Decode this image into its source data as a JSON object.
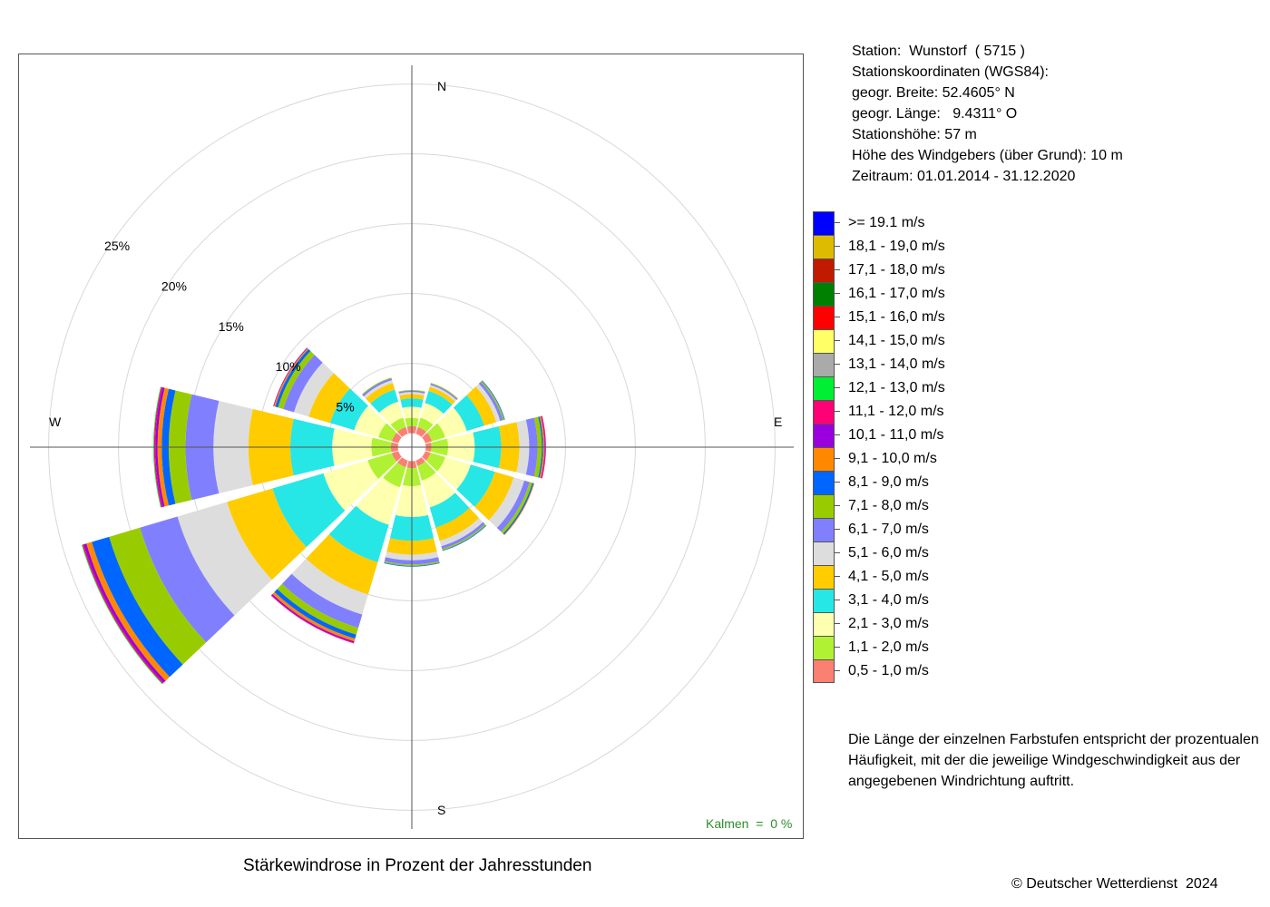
{
  "station": {
    "line1": "Station:  Wunstorf  ( 5715 )",
    "line2": "Stationskoordinaten (WGS84):",
    "line3": "geogr. Breite: 52.4605° N",
    "line4": "geogr. Länge:   9.4311° O",
    "line5": "Stationshöhe: 57 m",
    "line6": "Höhe des Windgebers (über Grund): 10 m",
    "line7": "Zeitraum: 01.01.2014 - 31.12.2020"
  },
  "calm": "Kalmen  =  0 %",
  "explanation": "Die Länge der einzelnen Farbstufen entspricht der prozentualen Häufigkeit, mit der die jeweilige Windgeschwindigkeit aus der angegebenen Windrichtung auftritt.",
  "copyright": "© Deutscher Wetterdienst  2024",
  "chart_data": {
    "type": "wind-rose",
    "title": "Stärkewindrose in Prozent der Jahresstunden",
    "directions": [
      "N",
      "E",
      "S",
      "W"
    ],
    "ring_labels": [
      "5%",
      "10%",
      "15%",
      "20%",
      "25%"
    ],
    "rings": [
      5,
      10,
      15,
      20,
      25
    ],
    "inner_offset": 1,
    "speed_classes": [
      {
        "label": "0,5 - 1,0 m/s",
        "color": "#fa8072"
      },
      {
        "label": "1,1 - 2,0 m/s",
        "color": "#b0f233"
      },
      {
        "label": "2,1 - 3,0 m/s",
        "color": "#ffffb0"
      },
      {
        "label": "3,1 - 4,0 m/s",
        "color": "#27e6e6"
      },
      {
        "label": "4,1 - 5,0 m/s",
        "color": "#ffcc00"
      },
      {
        "label": "5,1 - 6,0 m/s",
        "color": "#dddddd"
      },
      {
        "label": "6,1 - 7,0 m/s",
        "color": "#8080ff"
      },
      {
        "label": "7,1 - 8,0 m/s",
        "color": "#99cc00"
      },
      {
        "label": "8,1 - 9,0 m/s",
        "color": "#0066ff"
      },
      {
        "label": "9,1 - 10,0 m/s",
        "color": "#ff8800"
      },
      {
        "label": "10,1 - 11,0 m/s",
        "color": "#9900dd"
      },
      {
        "label": "11,1 - 12,0 m/s",
        "color": "#ff0077"
      },
      {
        "label": "12,1 - 13,0 m/s",
        "color": "#00ee33"
      },
      {
        "label": "13,1 - 14,0 m/s",
        "color": "#aaaaaa"
      },
      {
        "label": "14,1 - 15,0 m/s",
        "color": "#ffff66"
      },
      {
        "label": "15,1 - 16,0 m/s",
        "color": "#ff0000"
      },
      {
        "label": "16,1 - 17,0 m/s",
        "color": "#008000"
      },
      {
        "label": "17,1 - 18,0 m/s",
        "color": "#c01a00"
      },
      {
        "label": "18,1 - 19,0 m/s",
        "color": "#ddbb00"
      },
      {
        "label": ">= 19.1 m/s",
        "color": "#0000ff"
      }
    ],
    "sectors": [
      {
        "direction_deg": 0,
        "values": [
          0.5,
          0.6,
          0.8,
          0.6,
          0.3,
          0.15,
          0.1,
          0.05
        ]
      },
      {
        "direction_deg": 30,
        "values": [
          0.5,
          0.7,
          1.1,
          0.9,
          0.3,
          0.15,
          0.1,
          0.05
        ]
      },
      {
        "direction_deg": 60,
        "values": [
          0.5,
          1.0,
          1.6,
          1.3,
          0.9,
          0.3,
          0.2,
          0.1,
          0.05
        ]
      },
      {
        "direction_deg": 90,
        "values": [
          0.4,
          1.2,
          1.9,
          1.9,
          1.3,
          0.7,
          0.6,
          0.3,
          0.1,
          0.1,
          0.05,
          0.05
        ]
      },
      {
        "direction_deg": 120,
        "values": [
          0.4,
          1.1,
          1.9,
          1.8,
          1.4,
          0.8,
          0.4,
          0.2,
          0.1,
          0.05
        ]
      },
      {
        "direction_deg": 150,
        "values": [
          0.4,
          1.1,
          2.0,
          1.5,
          1.0,
          0.4,
          0.2,
          0.1,
          0.05
        ]
      },
      {
        "direction_deg": 180,
        "values": [
          0.5,
          1.3,
          2.2,
          1.7,
          1.0,
          0.4,
          0.3,
          0.1,
          0.05
        ]
      },
      {
        "direction_deg": 210,
        "values": [
          0.5,
          1.5,
          2.8,
          2.8,
          2.4,
          1.5,
          1.0,
          0.5,
          0.3,
          0.2,
          0.1,
          0.05
        ]
      },
      {
        "direction_deg": 240,
        "values": [
          0.5,
          1.8,
          3.3,
          3.8,
          3.4,
          3.7,
          2.8,
          2.3,
          1.3,
          0.4,
          0.2,
          0.1,
          0.05
        ]
      },
      {
        "direction_deg": 270,
        "values": [
          0.5,
          1.4,
          2.8,
          3.0,
          3.0,
          2.5,
          2.0,
          1.2,
          0.5,
          0.3,
          0.15,
          0.1,
          0.05
        ]
      },
      {
        "direction_deg": 300,
        "values": [
          0.5,
          1.0,
          1.8,
          1.8,
          1.6,
          1.1,
          0.8,
          0.4,
          0.2,
          0.1,
          0.05
        ]
      },
      {
        "direction_deg": 330,
        "values": [
          0.5,
          0.7,
          1.2,
          0.9,
          0.5,
          0.2,
          0.15,
          0.05
        ]
      }
    ]
  }
}
